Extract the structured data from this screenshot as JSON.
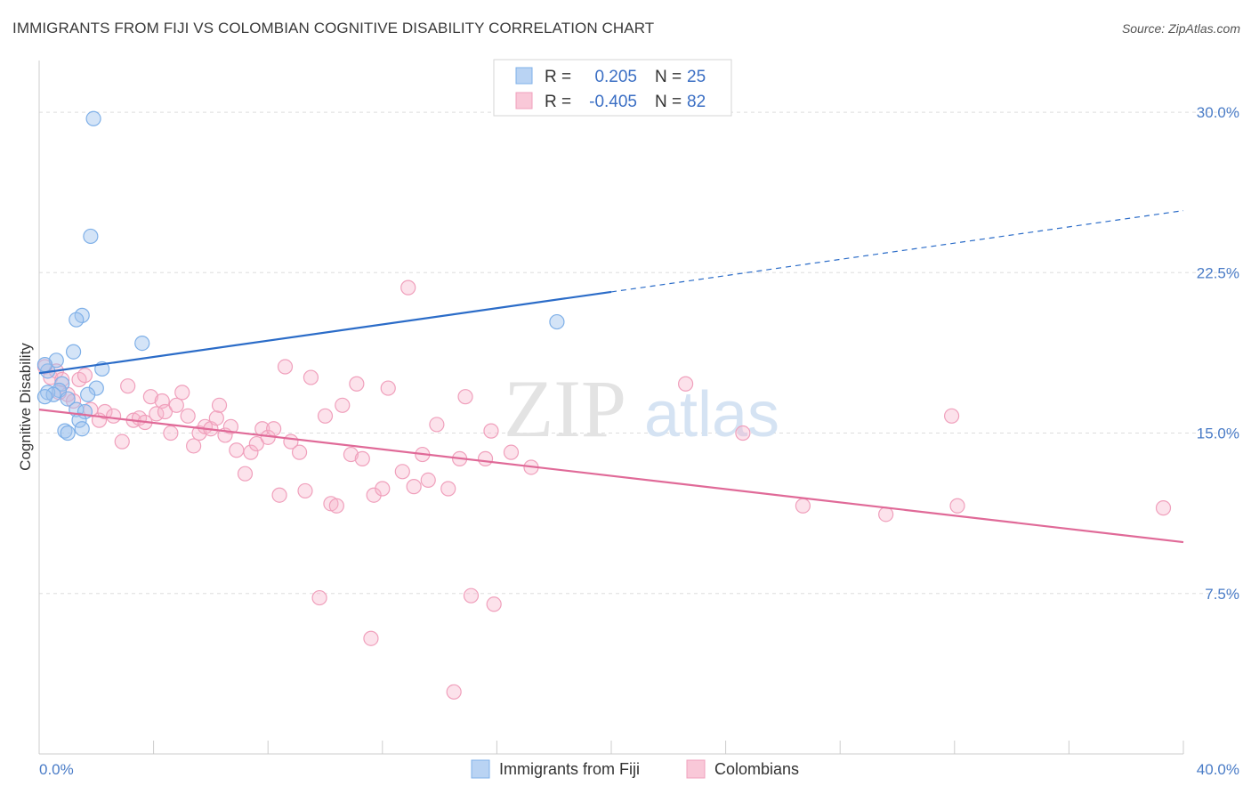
{
  "header": {
    "title": "IMMIGRANTS FROM FIJI VS COLOMBIAN COGNITIVE DISABILITY CORRELATION CHART",
    "source": "Source: ZipAtlas.com"
  },
  "colors": {
    "fiji": "#7fb0e8",
    "fiji_line": "#2b6cc8",
    "colombian": "#f0a0bc",
    "colombian_line": "#e06a98",
    "tick": "#4a7cc7"
  },
  "watermark": {
    "zip": "ZIP",
    "atlas": "atlas"
  },
  "chart_data": {
    "type": "scatter",
    "title": "IMMIGRANTS FROM FIJI VS COLOMBIAN COGNITIVE DISABILITY CORRELATION CHART",
    "ylabel": "Cognitive Disability",
    "xlabel": "",
    "xlim": [
      0,
      40
    ],
    "ylim": [
      0,
      32
    ],
    "x_tick_labels": [
      "0.0%",
      "40.0%"
    ],
    "y_ticks": [
      7.5,
      15.0,
      22.5,
      30.0
    ],
    "y_tick_labels": [
      "7.5%",
      "15.0%",
      "22.5%",
      "30.0%"
    ],
    "legend": {
      "rows": [
        {
          "r_label": "R =",
          "r_value": "0.205",
          "n_label": "N =",
          "n_value": "25"
        },
        {
          "r_label": "R =",
          "r_value": "-0.405",
          "n_label": "N =",
          "n_value": "82"
        }
      ]
    },
    "series": [
      {
        "name": "Immigrants from Fiji",
        "points": [
          [
            1.9,
            29.7
          ],
          [
            1.8,
            24.2
          ],
          [
            1.5,
            20.5
          ],
          [
            1.3,
            20.3
          ],
          [
            3.6,
            19.2
          ],
          [
            18.1,
            20.2
          ],
          [
            0.6,
            18.4
          ],
          [
            1.2,
            18.8
          ],
          [
            2.2,
            18.0
          ],
          [
            0.3,
            17.9
          ],
          [
            0.8,
            17.3
          ],
          [
            2.0,
            17.1
          ],
          [
            0.7,
            17.0
          ],
          [
            0.3,
            16.9
          ],
          [
            0.5,
            16.8
          ],
          [
            0.2,
            16.7
          ],
          [
            1.7,
            16.8
          ],
          [
            1.0,
            16.6
          ],
          [
            1.3,
            16.1
          ],
          [
            1.6,
            16.0
          ],
          [
            1.4,
            15.6
          ],
          [
            0.9,
            15.1
          ],
          [
            1.0,
            15.0
          ],
          [
            1.5,
            15.2
          ],
          [
            0.2,
            18.2
          ]
        ],
        "trend": {
          "x0": 0.0,
          "y0": 17.8,
          "x1": 20.0,
          "y1": 21.6,
          "dash_to_x": 40.0,
          "dash_to_y": 25.4
        }
      },
      {
        "name": "Colombians",
        "points": [
          [
            0.2,
            18.1
          ],
          [
            0.4,
            17.6
          ],
          [
            0.6,
            17.9
          ],
          [
            0.8,
            17.5
          ],
          [
            1.0,
            16.8
          ],
          [
            1.4,
            17.5
          ],
          [
            1.6,
            17.7
          ],
          [
            0.7,
            16.9
          ],
          [
            1.2,
            16.5
          ],
          [
            1.8,
            16.1
          ],
          [
            2.1,
            15.6
          ],
          [
            2.3,
            16.0
          ],
          [
            2.6,
            15.8
          ],
          [
            2.9,
            14.6
          ],
          [
            3.1,
            17.2
          ],
          [
            3.3,
            15.6
          ],
          [
            3.5,
            15.7
          ],
          [
            3.7,
            15.5
          ],
          [
            3.9,
            16.7
          ],
          [
            4.1,
            15.9
          ],
          [
            4.3,
            16.5
          ],
          [
            4.4,
            16.0
          ],
          [
            4.6,
            15.0
          ],
          [
            4.8,
            16.3
          ],
          [
            5.0,
            16.9
          ],
          [
            5.2,
            15.8
          ],
          [
            5.4,
            14.4
          ],
          [
            5.6,
            15.0
          ],
          [
            5.8,
            15.3
          ],
          [
            6.0,
            15.2
          ],
          [
            6.2,
            15.7
          ],
          [
            6.3,
            16.3
          ],
          [
            6.5,
            14.9
          ],
          [
            6.7,
            15.3
          ],
          [
            6.9,
            14.2
          ],
          [
            7.2,
            13.1
          ],
          [
            7.4,
            14.1
          ],
          [
            7.6,
            14.5
          ],
          [
            7.8,
            15.2
          ],
          [
            8.0,
            14.8
          ],
          [
            8.2,
            15.2
          ],
          [
            8.4,
            12.1
          ],
          [
            8.6,
            18.1
          ],
          [
            8.8,
            14.6
          ],
          [
            9.1,
            14.1
          ],
          [
            9.3,
            12.3
          ],
          [
            9.5,
            17.6
          ],
          [
            9.8,
            7.3
          ],
          [
            10.0,
            15.8
          ],
          [
            10.2,
            11.7
          ],
          [
            10.4,
            11.6
          ],
          [
            10.6,
            16.3
          ],
          [
            10.9,
            14.0
          ],
          [
            11.1,
            17.3
          ],
          [
            11.3,
            13.8
          ],
          [
            11.6,
            5.4
          ],
          [
            11.7,
            12.1
          ],
          [
            12.0,
            12.4
          ],
          [
            12.2,
            17.1
          ],
          [
            12.7,
            13.2
          ],
          [
            12.9,
            21.8
          ],
          [
            13.1,
            12.5
          ],
          [
            13.4,
            14.0
          ],
          [
            13.6,
            12.8
          ],
          [
            13.9,
            15.4
          ],
          [
            14.3,
            12.4
          ],
          [
            14.5,
            2.9
          ],
          [
            14.7,
            13.8
          ],
          [
            14.9,
            16.7
          ],
          [
            15.1,
            7.4
          ],
          [
            15.6,
            13.8
          ],
          [
            15.8,
            15.1
          ],
          [
            15.9,
            7.0
          ],
          [
            16.5,
            14.1
          ],
          [
            17.2,
            13.4
          ],
          [
            22.6,
            17.3
          ],
          [
            24.6,
            15.0
          ],
          [
            26.7,
            11.6
          ],
          [
            29.6,
            11.2
          ],
          [
            31.9,
            15.8
          ],
          [
            32.1,
            11.6
          ],
          [
            39.3,
            11.5
          ]
        ],
        "trend": {
          "x0": 0.0,
          "y0": 16.1,
          "x1": 40.0,
          "y1": 9.9
        }
      }
    ]
  }
}
